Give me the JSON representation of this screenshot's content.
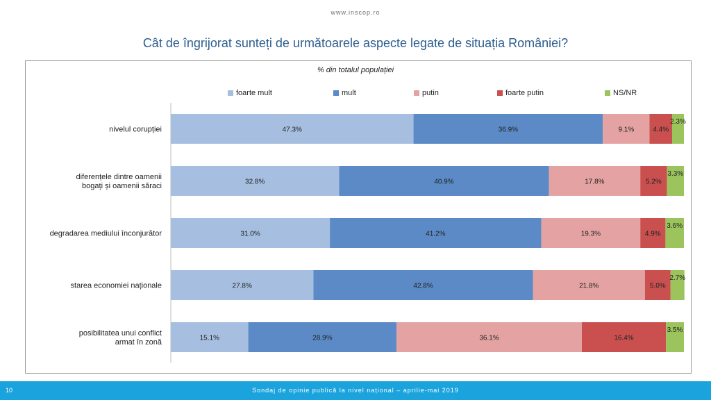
{
  "header": {
    "site": "www.inscop.ro"
  },
  "footer": {
    "page": "10",
    "text": "Sondaj de opinie publică la nivel național – aprilie-mai 2019"
  },
  "colors": {
    "foarte_mult": "#a6bfe1",
    "mult": "#5b8ac6",
    "putin": "#e4a3a2",
    "foarte_putin": "#c9504f",
    "ns_nr": "#9bc45d"
  },
  "chart_data": {
    "type": "bar",
    "orientation": "horizontal",
    "stacked": true,
    "title": "Cât de îngrijorat sunteți de următoarele aspecte legate de situația României?",
    "subtitle": "% din totalul populației",
    "legend_position": "top",
    "xlim": [
      0,
      100
    ],
    "categories": [
      "nivelul corupției",
      "diferențele dintre oamenii bogați și oamenii săraci",
      "degradarea mediului înconjurător",
      "starea economiei naționale",
      "posibilitatea unui conflict armat în zonă"
    ],
    "series": [
      {
        "name": "foarte mult",
        "color": "#a6bfe1",
        "values": [
          47.3,
          32.8,
          31.0,
          27.8,
          15.1
        ],
        "labels": [
          "47.3%",
          "32.8%",
          "31.0%",
          "27.8%",
          "15.1%"
        ]
      },
      {
        "name": "mult",
        "color": "#5b8ac6",
        "values": [
          36.9,
          40.9,
          41.2,
          42.8,
          28.9
        ],
        "labels": [
          "36.9%",
          "40.9%",
          "41.2%",
          "42.8%",
          "28.9%"
        ]
      },
      {
        "name": "putin",
        "color": "#e4a3a2",
        "values": [
          9.1,
          17.8,
          19.3,
          21.8,
          36.1
        ],
        "labels": [
          "9.1%",
          "17.8%",
          "19.3%",
          "21.8%",
          "36.1%"
        ]
      },
      {
        "name": "foarte putin",
        "color": "#c9504f",
        "values": [
          4.4,
          5.2,
          4.9,
          5.0,
          16.4
        ],
        "labels": [
          "4.4%",
          "5.2%",
          "4.9%",
          "5.0%",
          "16.4%"
        ]
      },
      {
        "name": "NS/NR",
        "color": "#9bc45d",
        "values": [
          2.3,
          3.3,
          3.6,
          2.7,
          3.5
        ],
        "labels": [
          "2.3%",
          "3.3%",
          "3.6%",
          "2.7%",
          "3.5%"
        ]
      }
    ]
  }
}
